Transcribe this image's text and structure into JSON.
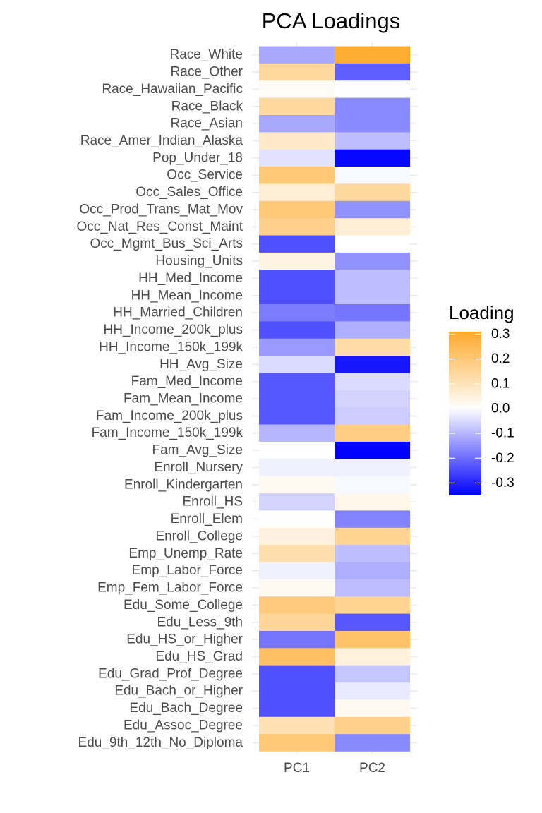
{
  "chart_data": {
    "type": "heatmap",
    "title": "PCA Loadings",
    "x": [
      "PC1",
      "PC2"
    ],
    "y": [
      "Race_White",
      "Race_Other",
      "Race_Hawaiian_Pacific",
      "Race_Black",
      "Race_Asian",
      "Race_Amer_Indian_Alaska",
      "Pop_Under_18",
      "Occ_Service",
      "Occ_Sales_Office",
      "Occ_Prod_Trans_Mat_Mov",
      "Occ_Nat_Res_Const_Maint",
      "Occ_Mgmt_Bus_Sci_Arts",
      "Housing_Units",
      "HH_Med_Income",
      "HH_Mean_Income",
      "HH_Married_Children",
      "HH_Income_200k_plus",
      "HH_Income_150k_199k",
      "HH_Avg_Size",
      "Fam_Med_Income",
      "Fam_Mean_Income",
      "Fam_Income_200k_plus",
      "Fam_Income_150k_199k",
      "Fam_Avg_Size",
      "Enroll_Nursery",
      "Enroll_Kindergarten",
      "Enroll_HS",
      "Enroll_Elem",
      "Enroll_College",
      "Emp_Unemp_Rate",
      "Emp_Labor_Force",
      "Emp_Fem_Labor_Force",
      "Edu_Some_College",
      "Edu_Less_9th",
      "Edu_HS_or_Higher",
      "Edu_HS_Grad",
      "Edu_Grad_Prof_Degree",
      "Edu_Bach_or_Higher",
      "Edu_Bach_Degree",
      "Edu_Assoc_Degree",
      "Edu_9th_12th_No_Diploma"
    ],
    "values": [
      [
        -0.12,
        0.3
      ],
      [
        0.14,
        -0.22
      ],
      [
        0.01,
        0.0
      ],
      [
        0.14,
        -0.16
      ],
      [
        -0.12,
        -0.16
      ],
      [
        0.08,
        -0.09
      ],
      [
        -0.04,
        -0.34
      ],
      [
        0.2,
        -0.01
      ],
      [
        0.06,
        0.14
      ],
      [
        0.2,
        -0.15
      ],
      [
        0.17,
        0.06
      ],
      [
        -0.24,
        0.0
      ],
      [
        0.04,
        -0.15
      ],
      [
        -0.24,
        -0.09
      ],
      [
        -0.24,
        -0.09
      ],
      [
        -0.18,
        -0.19
      ],
      [
        -0.24,
        -0.11
      ],
      [
        -0.14,
        0.13
      ],
      [
        -0.05,
        -0.32
      ],
      [
        -0.23,
        -0.05
      ],
      [
        -0.23,
        -0.06
      ],
      [
        -0.23,
        -0.07
      ],
      [
        -0.1,
        0.18
      ],
      [
        0.0,
        -0.35
      ],
      [
        -0.02,
        -0.02
      ],
      [
        0.02,
        -0.01
      ],
      [
        -0.06,
        0.03
      ],
      [
        0.0,
        -0.17
      ],
      [
        0.05,
        0.16
      ],
      [
        0.12,
        -0.09
      ],
      [
        -0.02,
        -0.11
      ],
      [
        0.02,
        -0.09
      ],
      [
        0.19,
        0.16
      ],
      [
        0.15,
        -0.23
      ],
      [
        -0.19,
        0.22
      ],
      [
        0.23,
        0.05
      ],
      [
        -0.24,
        -0.08
      ],
      [
        -0.24,
        -0.03
      ],
      [
        -0.24,
        0.02
      ],
      [
        0.11,
        0.17
      ],
      [
        0.2,
        -0.16
      ]
    ],
    "color_scale": {
      "low": "#0000ff",
      "mid": "#ffffff",
      "high": "#ffa92b",
      "midpoint": 0,
      "limits": [
        -0.35,
        0.31
      ]
    },
    "legend": {
      "title": "Loading",
      "ticks": [
        0.3,
        0.2,
        0.1,
        0.0,
        -0.1,
        -0.2,
        -0.3
      ],
      "tick_labels": [
        "0.3",
        "0.2",
        "0.1",
        "0.0",
        "-0.1",
        "-0.2",
        "-0.3"
      ],
      "position": "right"
    },
    "grid": true
  }
}
